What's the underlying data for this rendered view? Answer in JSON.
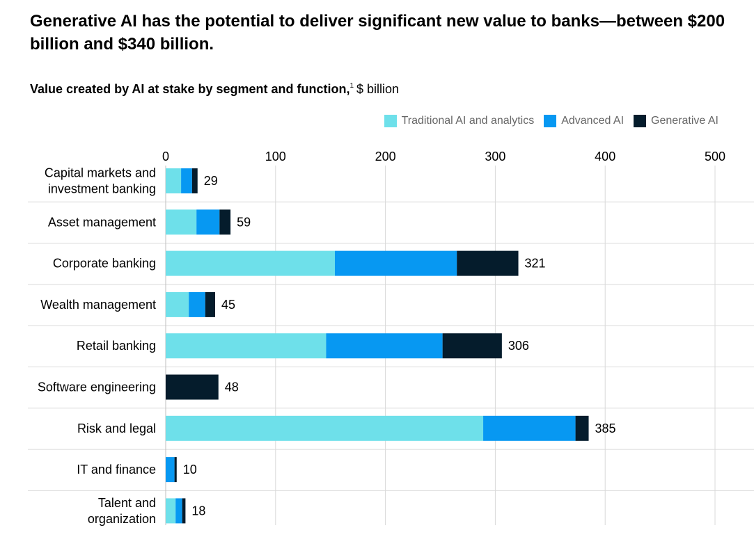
{
  "header": {
    "title": "Generative AI has the potential to deliver significant new value to banks—between $200 billion and $340 billion.",
    "subtitle": "Value created by AI at stake by segment and function,",
    "footnote_marker": "1",
    "unit": "$ billion"
  },
  "colors": {
    "traditional": "#6ee0ea",
    "advanced": "#0798f2",
    "generative": "#051c2c",
    "grid": "#d9d9d9",
    "text": "#000000"
  },
  "chart_data": {
    "type": "bar",
    "orientation": "horizontal",
    "stacked": true,
    "title": "Value created by AI at stake by segment and function, $ billion",
    "xlim": [
      0,
      500
    ],
    "x_ticks": [
      0,
      100,
      200,
      300,
      400,
      500
    ],
    "x_tick_labels": [
      "0",
      "100",
      "200",
      "300",
      "400",
      "500"
    ],
    "categories": [
      [
        "Capital markets and",
        "investment banking"
      ],
      [
        "Asset management"
      ],
      [
        "Corporate banking"
      ],
      [
        "Wealth management"
      ],
      [
        "Retail banking"
      ],
      [
        "Software engineering"
      ],
      [
        "Risk and legal"
      ],
      [
        "IT and finance"
      ],
      [
        "Talent and",
        "organization"
      ]
    ],
    "series": [
      {
        "name": "Traditional AI and analytics",
        "key": "traditional",
        "values": [
          14,
          28,
          154,
          21,
          146,
          0,
          289,
          0,
          9
        ]
      },
      {
        "name": "Advanced AI",
        "key": "advanced",
        "values": [
          10,
          21,
          111,
          15,
          106,
          0,
          84,
          8,
          6
        ]
      },
      {
        "name": "Generative  AI",
        "key": "generative",
        "values": [
          5,
          10,
          56,
          9,
          54,
          48,
          12,
          2,
          3
        ]
      }
    ],
    "totals": [
      29,
      59,
      321,
      45,
      306,
      48,
      385,
      10,
      18
    ],
    "total_labels": [
      "29",
      "59",
      "321",
      "45",
      "306",
      "48",
      "385",
      "10",
      "18"
    ],
    "legend_position": "top-right",
    "grid": true
  }
}
